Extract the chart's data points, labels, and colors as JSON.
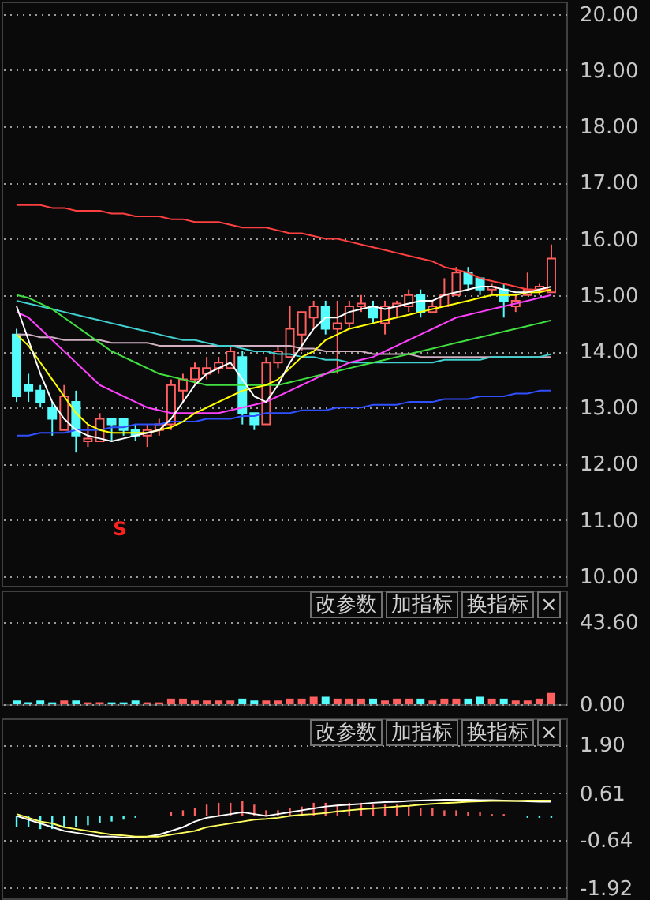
{
  "chart_data": [
    {
      "type": "candlestick",
      "categories": [
        null,
        null,
        null,
        null,
        null,
        null,
        null,
        null,
        null,
        null,
        null,
        null,
        null,
        null,
        null,
        null,
        null,
        null,
        null,
        null,
        null,
        null,
        null,
        null,
        null,
        null,
        null,
        null,
        null,
        null,
        null,
        null,
        null,
        null,
        null,
        null,
        null,
        null,
        null,
        null,
        null,
        null,
        null,
        null,
        null,
        null
      ],
      "ohlc": [
        [
          14.3,
          14.4,
          13.1,
          13.2
        ],
        [
          13.4,
          13.6,
          13.1,
          13.3
        ],
        [
          13.3,
          13.4,
          13.0,
          13.1
        ],
        [
          13.0,
          13.1,
          12.5,
          12.8
        ],
        [
          12.6,
          13.4,
          12.6,
          13.2
        ],
        [
          13.1,
          13.3,
          12.2,
          12.5
        ],
        [
          12.4,
          12.7,
          12.3,
          12.45
        ],
        [
          12.4,
          12.9,
          12.4,
          12.8
        ],
        [
          12.8,
          12.8,
          12.4,
          12.7
        ],
        [
          12.8,
          12.8,
          12.5,
          12.6
        ],
        [
          12.6,
          12.7,
          12.4,
          12.5
        ],
        [
          12.5,
          12.7,
          12.3,
          12.6
        ],
        [
          12.6,
          12.8,
          12.5,
          12.7
        ],
        [
          12.7,
          13.5,
          12.6,
          13.4
        ],
        [
          13.3,
          13.6,
          13.1,
          13.5
        ],
        [
          13.5,
          13.8,
          13.4,
          13.7
        ],
        [
          13.6,
          13.9,
          13.5,
          13.7
        ],
        [
          13.7,
          13.9,
          13.6,
          13.8
        ],
        [
          13.7,
          14.1,
          13.7,
          14.0
        ],
        [
          13.9,
          14.0,
          12.7,
          12.9
        ],
        [
          12.9,
          12.9,
          12.6,
          12.7
        ],
        [
          12.7,
          13.9,
          12.7,
          13.8
        ],
        [
          13.8,
          14.1,
          13.7,
          14.0
        ],
        [
          13.9,
          14.8,
          13.9,
          14.4
        ],
        [
          14.3,
          14.7,
          14.0,
          14.7
        ],
        [
          14.6,
          14.9,
          14.4,
          14.8
        ],
        [
          14.8,
          14.9,
          14.3,
          14.4
        ],
        [
          14.4,
          14.9,
          13.6,
          14.5
        ],
        [
          14.5,
          14.9,
          14.4,
          14.8
        ],
        [
          14.8,
          15.0,
          14.7,
          14.85
        ],
        [
          14.8,
          14.9,
          14.5,
          14.6
        ],
        [
          14.5,
          14.9,
          14.3,
          14.8
        ],
        [
          14.8,
          14.9,
          14.6,
          14.85
        ],
        [
          14.8,
          15.1,
          14.7,
          15.0
        ],
        [
          15.0,
          15.1,
          14.6,
          14.7
        ],
        [
          14.7,
          14.9,
          14.7,
          14.8
        ],
        [
          14.8,
          15.3,
          14.8,
          15.0
        ],
        [
          15.0,
          15.5,
          15.0,
          15.4
        ],
        [
          15.4,
          15.5,
          15.1,
          15.2
        ],
        [
          15.3,
          15.3,
          15.0,
          15.1
        ],
        [
          15.1,
          15.2,
          15.0,
          15.15
        ],
        [
          15.1,
          15.2,
          14.6,
          14.9
        ],
        [
          14.8,
          15.0,
          14.7,
          14.9
        ],
        [
          15.0,
          15.4,
          15.0,
          15.1
        ],
        [
          15.1,
          15.2,
          15.0,
          15.15
        ],
        [
          15.05,
          15.9,
          15.05,
          15.65
        ]
      ],
      "colors": [
        "#54fcfc",
        "#54fcfc",
        "#54fcfc",
        "#54fcfc",
        "#ff5f5f",
        "#54fcfc",
        "#ff5f5f",
        "#ff5f5f",
        "#54fcfc",
        "#54fcfc",
        "#54fcfc",
        "#ff5f5f",
        "#ff5f5f",
        "#ff5f5f",
        "#ff5f5f",
        "#ff5f5f",
        "#ff5f5f",
        "#ff5f5f",
        "#ff5f5f",
        "#54fcfc",
        "#54fcfc",
        "#ff5f5f",
        "#ff5f5f",
        "#ff5f5f",
        "#ff5f5f",
        "#ff5f5f",
        "#54fcfc",
        "#ff5f5f",
        "#ff5f5f",
        "#ff5f5f",
        "#54fcfc",
        "#ff5f5f",
        "#ff5f5f",
        "#ff5f5f",
        "#54fcfc",
        "#ff5f5f",
        "#ff5f5f",
        "#ff5f5f",
        "#54fcfc",
        "#54fcfc",
        "#ff5f5f",
        "#54fcfc",
        "#ff5f5f",
        "#ff5f5f",
        "#ff5f5f",
        "#ff5f5f"
      ],
      "series": [
        {
          "type": "line",
          "color": "#ff4040",
          "values": [
            16.6,
            16.6,
            16.6,
            16.55,
            16.55,
            16.5,
            16.5,
            16.5,
            16.45,
            16.45,
            16.4,
            16.4,
            16.4,
            16.35,
            16.35,
            16.3,
            16.3,
            16.3,
            16.25,
            16.2,
            16.2,
            16.2,
            16.15,
            16.1,
            16.1,
            16.05,
            16.0,
            16.0,
            15.95,
            15.9,
            15.85,
            15.8,
            15.75,
            15.7,
            15.65,
            15.6,
            15.5,
            15.45,
            15.4,
            15.3,
            15.25,
            15.2,
            15.15,
            15.1,
            15.1,
            15.1
          ]
        },
        {
          "type": "line",
          "color": "#3050ff",
          "values": [
            12.5,
            12.5,
            12.55,
            12.55,
            12.55,
            12.6,
            12.6,
            12.6,
            12.65,
            12.65,
            12.7,
            12.7,
            12.7,
            12.75,
            12.75,
            12.75,
            12.8,
            12.8,
            12.8,
            12.85,
            12.85,
            12.9,
            12.9,
            12.9,
            12.95,
            12.95,
            12.95,
            13.0,
            13.0,
            13.0,
            13.05,
            13.05,
            13.05,
            13.1,
            13.1,
            13.1,
            13.15,
            13.15,
            13.15,
            13.2,
            13.2,
            13.2,
            13.25,
            13.25,
            13.3,
            13.3
          ]
        },
        {
          "type": "line",
          "color": "#d0b0c0",
          "values": [
            14.3,
            14.3,
            14.25,
            14.25,
            14.2,
            14.2,
            14.2,
            14.2,
            14.15,
            14.15,
            14.15,
            14.15,
            14.1,
            14.1,
            14.1,
            14.1,
            14.1,
            14.1,
            14.1,
            14.1,
            14.1,
            14.1,
            14.1,
            14.1,
            14.05,
            14.05,
            14.0,
            14.0,
            14.0,
            14.0,
            13.95,
            13.95,
            13.95,
            13.95,
            13.9,
            13.9,
            13.9,
            13.9,
            13.9,
            13.9,
            13.9,
            13.9,
            13.9,
            13.9,
            13.9,
            13.9
          ]
        },
        {
          "type": "line",
          "color": "#40d0d0",
          "values": [
            14.9,
            14.85,
            14.8,
            14.75,
            14.7,
            14.65,
            14.6,
            14.55,
            14.5,
            14.45,
            14.4,
            14.35,
            14.3,
            14.25,
            14.2,
            14.2,
            14.15,
            14.1,
            14.1,
            14.05,
            14.0,
            14.0,
            13.95,
            13.95,
            13.9,
            13.9,
            13.85,
            13.85,
            13.8,
            13.8,
            13.8,
            13.8,
            13.8,
            13.8,
            13.8,
            13.8,
            13.85,
            13.85,
            13.85,
            13.85,
            13.9,
            13.9,
            13.9,
            13.9,
            13.9,
            13.95
          ]
        },
        {
          "type": "line",
          "color": "#40e040",
          "values": [
            15.0,
            14.95,
            14.85,
            14.75,
            14.6,
            14.45,
            14.3,
            14.15,
            14.0,
            13.9,
            13.8,
            13.7,
            13.6,
            13.55,
            13.5,
            13.45,
            13.4,
            13.4,
            13.4,
            13.4,
            13.4,
            13.4,
            13.4,
            13.45,
            13.5,
            13.55,
            13.6,
            13.65,
            13.7,
            13.75,
            13.8,
            13.85,
            13.9,
            13.95,
            14.0,
            14.05,
            14.1,
            14.15,
            14.2,
            14.25,
            14.3,
            14.35,
            14.4,
            14.45,
            14.5,
            14.55
          ]
        },
        {
          "type": "line",
          "color": "#ff40ff",
          "values": [
            14.7,
            14.6,
            14.4,
            14.2,
            14.0,
            13.8,
            13.6,
            13.4,
            13.3,
            13.2,
            13.1,
            13.0,
            12.95,
            12.9,
            12.9,
            12.9,
            12.9,
            12.9,
            12.95,
            13.0,
            13.05,
            13.1,
            13.2,
            13.3,
            13.4,
            13.5,
            13.6,
            13.7,
            13.8,
            13.85,
            13.9,
            14.0,
            14.1,
            14.2,
            14.3,
            14.4,
            14.5,
            14.6,
            14.65,
            14.7,
            14.75,
            14.8,
            14.85,
            14.9,
            14.95,
            15.0
          ]
        },
        {
          "type": "line",
          "color": "#ffff00",
          "values": [
            14.3,
            14.1,
            13.8,
            13.5,
            13.2,
            12.9,
            12.7,
            12.6,
            12.55,
            12.55,
            12.55,
            12.55,
            12.6,
            12.65,
            12.75,
            12.9,
            13.0,
            13.1,
            13.2,
            13.3,
            13.35,
            13.4,
            13.5,
            13.7,
            13.9,
            14.0,
            14.2,
            14.3,
            14.4,
            14.45,
            14.5,
            14.55,
            14.6,
            14.65,
            14.7,
            14.75,
            14.8,
            14.85,
            14.9,
            14.95,
            15.0,
            15.0,
            15.0,
            15.05,
            15.05,
            15.1
          ]
        },
        {
          "type": "line",
          "color": "#ffffff",
          "values": [
            14.8,
            14.2,
            13.6,
            13.1,
            12.8,
            12.6,
            12.5,
            12.45,
            12.4,
            12.45,
            12.5,
            12.55,
            12.6,
            12.8,
            13.1,
            13.4,
            13.6,
            13.7,
            13.8,
            13.5,
            13.2,
            13.1,
            13.4,
            13.8,
            14.1,
            14.4,
            14.6,
            14.6,
            14.7,
            14.75,
            14.8,
            14.75,
            14.8,
            14.85,
            14.9,
            14.9,
            15.0,
            15.05,
            15.1,
            15.15,
            15.15,
            15.1,
            15.05,
            15.05,
            15.1,
            15.15
          ]
        }
      ],
      "ylim": [
        9.83,
        20.22
      ],
      "yticks": [
        {
          "value": 10,
          "label": "10.00"
        },
        {
          "value": 11,
          "label": "11.00"
        },
        {
          "value": 12,
          "label": "12.00"
        },
        {
          "value": 13,
          "label": "13.00"
        },
        {
          "value": 14,
          "label": "14.00"
        },
        {
          "value": 15,
          "label": "15.00"
        },
        {
          "value": 16,
          "label": "16.00"
        },
        {
          "value": 17,
          "label": "17.00"
        },
        {
          "value": 18,
          "label": "18.00"
        },
        {
          "value": 19,
          "label": "19.00"
        },
        {
          "value": 20,
          "label": "20.00"
        }
      ],
      "grid": "y",
      "tick_labels": "y",
      "annotations": [
        "S"
      ]
    },
    {
      "type": "bar",
      "categories": [
        null,
        null,
        null,
        null,
        null,
        null,
        null,
        null,
        null,
        null,
        null,
        null,
        null,
        null,
        null,
        null,
        null,
        null,
        null,
        null,
        null,
        null,
        null,
        null,
        null,
        null,
        null,
        null,
        null,
        null,
        null,
        null,
        null,
        null,
        null,
        null,
        null,
        null,
        null,
        null,
        null,
        null,
        null,
        null,
        null,
        null
      ],
      "values": [
        2,
        1,
        2,
        1,
        2,
        2,
        1,
        1,
        1,
        1,
        2,
        1,
        1,
        3,
        3,
        2,
        2,
        2,
        2,
        3,
        2,
        2,
        2,
        3,
        3,
        4,
        4,
        3,
        3,
        3,
        3,
        2,
        3,
        3,
        3,
        2,
        3,
        3,
        3,
        4,
        3,
        3,
        2,
        2,
        3,
        6
      ],
      "colors": [
        "#54fcfc",
        "#54fcfc",
        "#54fcfc",
        "#54fcfc",
        "#ff5f5f",
        "#54fcfc",
        "#ff5f5f",
        "#ff5f5f",
        "#54fcfc",
        "#54fcfc",
        "#54fcfc",
        "#ff5f5f",
        "#ff5f5f",
        "#ff5f5f",
        "#ff5f5f",
        "#ff5f5f",
        "#ff5f5f",
        "#ff5f5f",
        "#ff5f5f",
        "#54fcfc",
        "#54fcfc",
        "#ff5f5f",
        "#ff5f5f",
        "#ff5f5f",
        "#ff5f5f",
        "#ff5f5f",
        "#54fcfc",
        "#ff5f5f",
        "#ff5f5f",
        "#ff5f5f",
        "#54fcfc",
        "#ff5f5f",
        "#ff5f5f",
        "#ff5f5f",
        "#54fcfc",
        "#ff5f5f",
        "#ff5f5f",
        "#ff5f5f",
        "#54fcfc",
        "#54fcfc",
        "#ff5f5f",
        "#54fcfc",
        "#ff5f5f",
        "#ff5f5f",
        "#ff5f5f",
        "#ff5f5f"
      ],
      "ylim": [
        0,
        60.5
      ],
      "yticks": [
        {
          "value": 0,
          "label": "0.00"
        },
        {
          "value": 43.6,
          "label": "43.60"
        }
      ],
      "grid": "y",
      "tick_labels": "y",
      "annotations": [
        "改参数",
        "加指标",
        "换指标",
        "×"
      ]
    },
    {
      "type": "bar",
      "categories": [
        null,
        null,
        null,
        null,
        null,
        null,
        null,
        null,
        null,
        null,
        null,
        null,
        null,
        null,
        null,
        null,
        null,
        null,
        null,
        null,
        null,
        null,
        null,
        null,
        null,
        null,
        null,
        null,
        null,
        null,
        null,
        null,
        null,
        null,
        null,
        null,
        null,
        null,
        null,
        null,
        null,
        null,
        null,
        null,
        null,
        null
      ],
      "series": [
        {
          "type": "bar",
          "colors": [
            "#54fcfc",
            "#54fcfc",
            "#54fcfc",
            "#54fcfc",
            "#54fcfc",
            "#54fcfc",
            "#54fcfc",
            "#54fcfc",
            "#54fcfc",
            "#54fcfc",
            "#54fcfc",
            "#54fcfc",
            "#54fcfc",
            "#ff5f5f",
            "#ff5f5f",
            "#ff5f5f",
            "#ff5f5f",
            "#ff5f5f",
            "#ff5f5f",
            "#ff5f5f",
            "#ff5f5f",
            "#ff5f5f",
            "#ff5f5f",
            "#ff5f5f",
            "#ff5f5f",
            "#ff5f5f",
            "#ff5f5f",
            "#ff5f5f",
            "#ff5f5f",
            "#ff5f5f",
            "#ff5f5f",
            "#ff5f5f",
            "#ff5f5f",
            "#ff5f5f",
            "#ff5f5f",
            "#ff5f5f",
            "#ff5f5f",
            "#ff5f5f",
            "#ff5f5f",
            "#ff5f5f",
            "#ff5f5f",
            "#ff5f5f",
            "#54fcfc",
            "#54fcfc",
            "#54fcfc",
            "#54fcfc"
          ],
          "values": [
            -0.3,
            -0.3,
            -0.35,
            -0.35,
            -0.3,
            -0.3,
            -0.25,
            -0.2,
            -0.15,
            -0.1,
            -0.05,
            null,
            null,
            0.1,
            0.15,
            0.2,
            0.3,
            0.35,
            0.35,
            0.4,
            0.3,
            0.15,
            0.15,
            0.2,
            0.25,
            0.35,
            0.35,
            0.3,
            0.35,
            0.35,
            0.3,
            0.3,
            0.3,
            0.25,
            0.2,
            0.2,
            0.15,
            0.15,
            0.1,
            0.1,
            0.05,
            0.05,
            null,
            -0.05,
            -0.05,
            -0.05
          ]
        },
        {
          "type": "line",
          "color": "#ffffff",
          "values": [
            0.0,
            -0.1,
            -0.2,
            -0.3,
            -0.4,
            -0.45,
            -0.5,
            -0.55,
            -0.55,
            -0.58,
            -0.58,
            -0.55,
            -0.5,
            -0.4,
            -0.3,
            -0.15,
            -0.05,
            0.0,
            0.05,
            0.1,
            0.05,
            0.0,
            0.05,
            0.1,
            0.15,
            0.2,
            0.25,
            0.28,
            0.3,
            0.32,
            0.35,
            0.37,
            0.38,
            0.4,
            0.41,
            0.42,
            0.43,
            0.43,
            0.43,
            0.42,
            0.42,
            0.41,
            0.4,
            0.39,
            0.38,
            0.38
          ]
        },
        {
          "type": "line",
          "color": "#ffff60",
          "values": [
            0.05,
            -0.05,
            -0.15,
            -0.2,
            -0.3,
            -0.35,
            -0.4,
            -0.45,
            -0.5,
            -0.52,
            -0.55,
            -0.55,
            -0.55,
            -0.5,
            -0.45,
            -0.4,
            -0.3,
            -0.25,
            -0.2,
            -0.15,
            -0.1,
            -0.08,
            -0.05,
            0.0,
            0.03,
            0.05,
            0.08,
            0.12,
            0.15,
            0.18,
            0.2,
            0.22,
            0.25,
            0.27,
            0.3,
            0.32,
            0.34,
            0.36,
            0.38,
            0.39,
            0.4,
            0.4,
            0.4,
            0.41,
            0.41,
            0.41
          ]
        }
      ],
      "ylim": [
        -2.2,
        2.6
      ],
      "yticks": [
        {
          "value": -1.92,
          "label": "-1.92"
        },
        {
          "value": -0.64,
          "label": "-0.64"
        },
        {
          "value": 0.61,
          "label": "0.61"
        },
        {
          "value": 1.9,
          "label": "1.90"
        }
      ],
      "grid": "y",
      "tick_labels": "y",
      "annotations": [
        "改参数",
        "加指标",
        "换指标",
        "×"
      ]
    }
  ]
}
